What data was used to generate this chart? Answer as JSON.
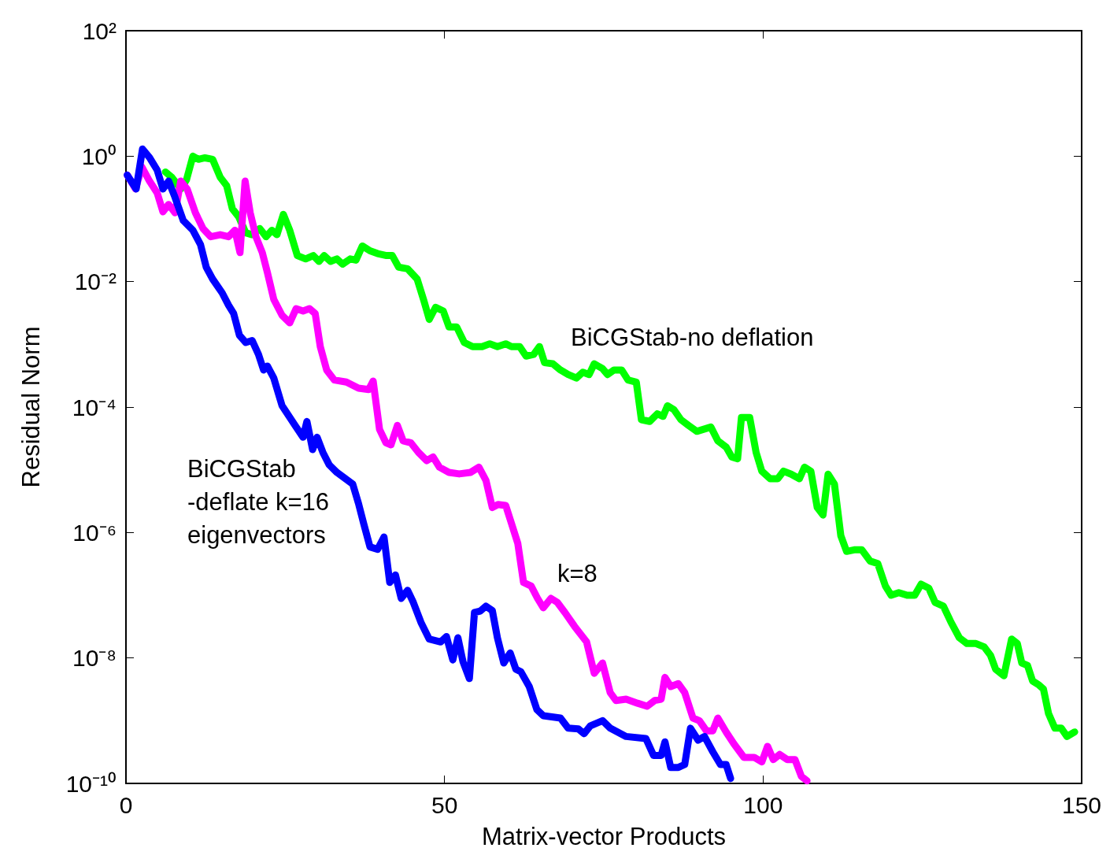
{
  "chart_data": {
    "type": "line",
    "xlabel": "Matrix-vector Products",
    "ylabel": "Residual Norm",
    "xlim": [
      0,
      150
    ],
    "xticks": [
      0,
      50,
      100,
      150
    ],
    "ylim": [
      1e-10,
      100
    ],
    "yticks": [
      {
        "value": 100,
        "label": "10²"
      },
      {
        "value": 1,
        "label": "10⁰"
      },
      {
        "value": 0.01,
        "label": "10⁻²"
      },
      {
        "value": 0.0001,
        "label": "10⁻⁴"
      },
      {
        "value": 1e-06,
        "label": "10⁻⁶"
      },
      {
        "value": 1e-08,
        "label": "10⁻⁸"
      },
      {
        "value": 1e-10,
        "label": "10⁻¹⁰"
      }
    ],
    "log": "y",
    "grid": false,
    "marker": "none",
    "line_style": "solid",
    "series": [
      {
        "color": "#00ff00",
        "x": [
          6.2,
          7.2,
          8.6,
          9.5,
          10.5,
          11.4,
          12.4,
          13.6,
          14.8,
          15.8,
          16.7,
          17.7,
          18.8,
          19.8,
          21.0,
          22.0,
          22.9,
          23.7,
          24.7,
          25.7,
          26.9,
          28.2,
          29.4,
          30.3,
          31.1,
          32.1,
          33.1,
          34.0,
          35.2,
          36.1,
          37.1,
          38.3,
          39.5,
          40.9,
          41.8,
          42.8,
          44.2,
          45.7,
          46.7,
          47.6,
          48.6,
          49.8,
          50.7,
          51.9,
          53.1,
          54.4,
          55.9,
          57.1,
          58.3,
          59.6,
          60.5,
          61.8,
          62.8,
          64.0,
          64.9,
          65.7,
          67.0,
          68.2,
          69.4,
          70.7,
          71.7,
          72.7,
          73.5,
          74.8,
          75.6,
          76.6,
          77.8,
          78.8,
          80.1,
          80.9,
          82.2,
          83.4,
          84.3,
          85.0,
          86.0,
          87.1,
          88.3,
          89.6,
          90.6,
          91.8,
          92.9,
          94.2,
          95.1,
          96.0,
          96.6,
          97.9,
          98.9,
          99.8,
          101.1,
          102.3,
          103.2,
          104.4,
          105.7,
          106.5,
          107.5,
          108.5,
          109.4,
          110.2,
          111.2,
          112.2,
          113.1,
          114.3,
          115.5,
          116.8,
          118.0,
          119.2,
          120.1,
          121.3,
          122.6,
          123.8,
          124.8,
          126.0,
          127.0,
          128.3,
          129.5,
          130.8,
          132.0,
          133.4,
          134.7,
          135.7,
          136.5,
          137.8,
          139.0,
          139.9,
          140.6,
          141.5,
          142.3,
          143.3,
          144.0,
          144.8,
          145.8,
          146.8,
          147.7,
          148.9
        ],
        "values": [
          0.56,
          0.46,
          0.3,
          0.42,
          1.0,
          0.89,
          0.94,
          0.89,
          0.46,
          0.34,
          0.145,
          0.108,
          0.06,
          0.056,
          0.07,
          0.052,
          0.066,
          0.056,
          0.118,
          0.066,
          0.026,
          0.023,
          0.026,
          0.021,
          0.026,
          0.021,
          0.023,
          0.019,
          0.023,
          0.022,
          0.037,
          0.031,
          0.028,
          0.026,
          0.026,
          0.017,
          0.016,
          0.011,
          0.0052,
          0.0025,
          0.0039,
          0.0034,
          0.0019,
          0.0019,
          0.00107,
          0.00092,
          0.00092,
          0.00102,
          0.00092,
          0.00102,
          0.00092,
          0.00092,
          0.00065,
          0.00069,
          0.00092,
          0.00051,
          0.00049,
          0.00039,
          0.00033,
          0.00029,
          0.00036,
          0.00033,
          0.00049,
          0.00041,
          0.00033,
          0.00039,
          0.00039,
          0.00027,
          0.00025,
          6.3e-05,
          5.9e-05,
          7.8e-05,
          7.1e-05,
          0.000105,
          9.1e-05,
          6.3e-05,
          5.1e-05,
          4.1e-05,
          4.4e-05,
          4.8e-05,
          2.9e-05,
          2.3e-05,
          1.6e-05,
          1.5e-05,
          6.8e-05,
          6.8e-05,
          1.9e-05,
          9.5e-06,
          7.2e-06,
          7.2e-06,
          9.5e-06,
          8.5e-06,
          7.2e-06,
          1.1e-05,
          9.5e-06,
          2.5e-06,
          1.9e-06,
          8.5e-06,
          5.9e-06,
          8.9e-07,
          5e-07,
          5.3e-07,
          5.3e-07,
          3.5e-07,
          3.2e-07,
          1.4e-07,
          1e-07,
          1.1e-07,
          1e-07,
          1e-07,
          1.5e-07,
          1.3e-07,
          7.7e-08,
          6.7e-08,
          3.7e-08,
          2.1e-08,
          1.7e-08,
          1.7e-08,
          1.5e-08,
          1.1e-08,
          6.6e-09,
          5.2e-09,
          2e-08,
          1.7e-08,
          8.3e-09,
          7.6e-09,
          4.3e-09,
          3.7e-09,
          3.2e-09,
          1.3e-09,
          7.6e-10,
          7.6e-10,
          5.6e-10,
          6.6e-10
        ]
      },
      {
        "color": "#ff00ff",
        "x": [
          0.2,
          1.5,
          2.5,
          3.7,
          4.9,
          5.8,
          6.7,
          7.7,
          8.6,
          9.6,
          10.9,
          12.1,
          13.3,
          14.8,
          16.1,
          17.1,
          17.9,
          18.7,
          19.5,
          20.4,
          21.4,
          22.2,
          23.2,
          24.5,
          25.7,
          26.7,
          27.8,
          28.8,
          29.7,
          30.5,
          31.5,
          32.7,
          34.6,
          36.5,
          38.1,
          38.8,
          39.8,
          40.8,
          41.6,
          42.6,
          43.5,
          44.7,
          45.9,
          47.2,
          48.2,
          49.2,
          50.7,
          52.3,
          54.1,
          55.4,
          56.5,
          57.5,
          58.4,
          59.6,
          60.5,
          61.5,
          62.4,
          63.6,
          64.6,
          65.5,
          66.7,
          67.7,
          68.9,
          70.4,
          72.3,
          73.5,
          74.8,
          76.0,
          76.9,
          78.5,
          80.3,
          81.8,
          83.0,
          84.0,
          84.6,
          85.5,
          86.7,
          87.7,
          89.0,
          90.0,
          91.1,
          92.1,
          92.9,
          94.2,
          95.4,
          97.0,
          98.6,
          99.8,
          100.7,
          101.6,
          102.6,
          103.8,
          105.0,
          106.0,
          106.9
        ],
        "values": [
          0.5,
          0.3,
          0.67,
          0.4,
          0.26,
          0.13,
          0.17,
          0.125,
          0.4,
          0.3,
          0.125,
          0.07,
          0.052,
          0.056,
          0.052,
          0.066,
          0.029,
          0.4,
          0.125,
          0.052,
          0.029,
          0.014,
          0.0052,
          0.0029,
          0.0022,
          0.0037,
          0.0034,
          0.0037,
          0.0031,
          0.00092,
          0.00039,
          0.00027,
          0.00025,
          0.0002,
          0.00019,
          0.00026,
          4.4e-05,
          2.7e-05,
          2.5e-05,
          5.1e-05,
          2.9e-05,
          2.7e-05,
          1.9e-05,
          1.4e-05,
          1.6e-05,
          1.1e-05,
          9.1e-06,
          8.6e-06,
          9.1e-06,
          1.1e-05,
          6.8e-06,
          2.5e-06,
          2.8e-06,
          2.7e-06,
          1.4e-06,
          6.7e-07,
          1.6e-07,
          1.4e-07,
          8.9e-08,
          6.3e-08,
          8.9e-08,
          7.7e-08,
          5.3e-08,
          3.2e-08,
          1.8e-08,
          5.7e-09,
          8.3e-09,
          2.8e-09,
          2.1e-09,
          2.2e-09,
          1.9e-09,
          1.7e-09,
          2.1e-09,
          2.2e-09,
          4.9e-09,
          3.5e-09,
          3.9e-09,
          2.8e-09,
          1.1e-09,
          1e-09,
          6.9e-10,
          6.9e-10,
          1.1e-09,
          6.6e-10,
          4.3e-10,
          2.6e-10,
          2.6e-10,
          2.2e-10,
          3.9e-10,
          2.4e-10,
          2.9e-10,
          2.4e-10,
          2.4e-10,
          1.3e-10,
          1.1e-10
        ]
      },
      {
        "color": "#0000ff",
        "x": [
          0.2,
          1.6,
          2.6,
          3.7,
          4.9,
          5.8,
          6.7,
          7.7,
          9.0,
          10.5,
          11.7,
          12.6,
          13.6,
          15.1,
          16.1,
          16.9,
          17.8,
          18.8,
          19.8,
          20.8,
          21.6,
          22.2,
          23.2,
          24.5,
          26.6,
          27.8,
          28.4,
          29.3,
          30.0,
          30.9,
          31.9,
          33.1,
          35.6,
          36.5,
          37.3,
          38.3,
          39.5,
          40.5,
          41.4,
          42.3,
          43.2,
          44.2,
          45.1,
          46.3,
          47.6,
          49.4,
          50.3,
          51.3,
          52.1,
          52.9,
          53.9,
          54.7,
          55.6,
          56.5,
          57.5,
          58.3,
          59.3,
          60.3,
          61.2,
          62.0,
          63.3,
          64.5,
          65.5,
          68.2,
          69.4,
          71.0,
          71.9,
          72.9,
          74.8,
          76.0,
          78.5,
          81.6,
          82.8,
          84.0,
          84.6,
          85.5,
          86.7,
          87.7,
          88.6,
          89.8,
          90.8,
          92.1,
          93.3,
          94.2,
          94.9
        ],
        "values": [
          0.5,
          0.3,
          1.3,
          0.95,
          0.6,
          0.3,
          0.4,
          0.22,
          0.094,
          0.066,
          0.039,
          0.017,
          0.011,
          0.0066,
          0.0042,
          0.0031,
          0.0014,
          0.00107,
          0.00115,
          0.00069,
          0.00039,
          0.00045,
          0.00029,
          0.000105,
          5e-05,
          3.3e-05,
          5.9e-05,
          2.1e-05,
          3.3e-05,
          1.9e-05,
          1.2e-05,
          9.1e-06,
          5.9e-06,
          2.9e-06,
          1.4e-06,
          5.9e-07,
          5.4e-07,
          8.5e-07,
          1.6e-07,
          2.1e-07,
          8.9e-08,
          1.2e-07,
          7.7e-08,
          3.7e-08,
          2e-08,
          1.8e-08,
          2.2e-08,
          9.3e-09,
          2.1e-08,
          8.7e-09,
          4.7e-09,
          5.3e-08,
          5.6e-08,
          6.7e-08,
          5.7e-08,
          2.1e-08,
          8.3e-09,
          1.2e-08,
          6.6e-09,
          6e-09,
          3.5e-09,
          1.5e-09,
          1.2e-09,
          1.1e-09,
          7.6e-10,
          7.4e-10,
          6.2e-10,
          8.3e-10,
          1e-09,
          7.6e-10,
          5.6e-10,
          5.2e-10,
          2.8e-10,
          2.8e-10,
          4.6e-10,
          1.8e-10,
          1.8e-10,
          2e-10,
          7.6e-10,
          4.9e-10,
          5.6e-10,
          3.2e-10,
          2e-10,
          2e-10,
          1.2e-10
        ]
      }
    ],
    "annotations": [
      "BiCGStab-no deflation",
      "BiCGStab\n-deflate k=16\neigenvectors",
      "k=8"
    ]
  }
}
